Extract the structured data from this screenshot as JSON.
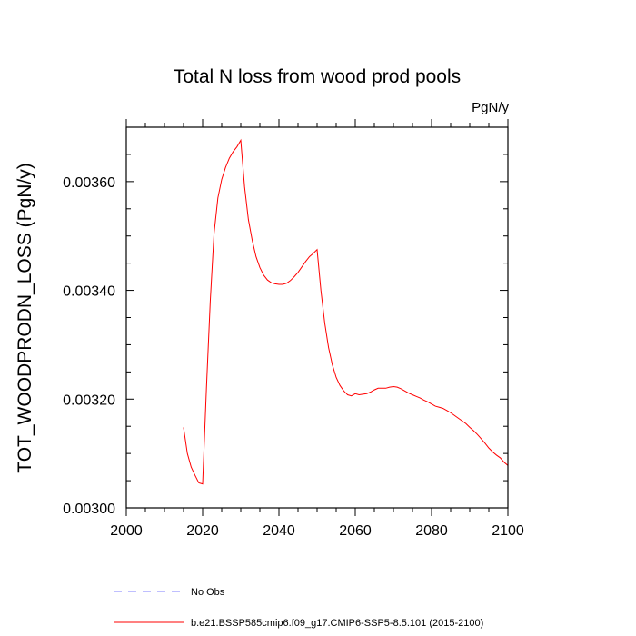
{
  "chart_data": {
    "type": "line",
    "title": "Total N loss from wood prod pools",
    "units_label": "PgN/y",
    "xlabel": "",
    "ylabel": "TOT_WOODPRODN_LOSS  (PgN/y)",
    "xlim": [
      2000,
      2100
    ],
    "ylim": [
      0.003,
      0.0037
    ],
    "x_ticks": [
      2000,
      2020,
      2040,
      2060,
      2080,
      2100
    ],
    "x_tick_labels": [
      "2000",
      "2020",
      "2040",
      "2060",
      "2080",
      "2100"
    ],
    "y_ticks": [
      0.003,
      0.0032,
      0.0034,
      0.0036
    ],
    "y_tick_labels": [
      "0.00300",
      "0.00320",
      "0.00340",
      "0.00360"
    ],
    "grid": false,
    "legend_placement": "bottom-left",
    "series": [
      {
        "name": "No Obs",
        "color": "#7f7fff",
        "dash": "dashed",
        "x": [],
        "y": []
      },
      {
        "name": "b.e21.BSSP585cmip6.f09_g17.CMIP6-SSP5-8.5.101 (2015-2100)",
        "color": "#ff0000",
        "dash": "solid",
        "x": [
          2015,
          2016,
          2017,
          2018,
          2019,
          2020,
          2021,
          2022,
          2023,
          2024,
          2025,
          2026,
          2027,
          2028,
          2029,
          2030,
          2031,
          2032,
          2033,
          2034,
          2035,
          2036,
          2037,
          2038,
          2039,
          2040,
          2041,
          2042,
          2043,
          2044,
          2045,
          2046,
          2047,
          2048,
          2049,
          2050,
          2051,
          2052,
          2053,
          2054,
          2055,
          2056,
          2057,
          2058,
          2059,
          2060,
          2061,
          2062,
          2063,
          2064,
          2065,
          2066,
          2067,
          2068,
          2069,
          2070,
          2071,
          2072,
          2073,
          2074,
          2075,
          2076,
          2077,
          2078,
          2079,
          2080,
          2081,
          2082,
          2083,
          2084,
          2085,
          2086,
          2087,
          2088,
          2089,
          2090,
          2091,
          2092,
          2093,
          2094,
          2095,
          2096,
          2097,
          2098,
          2099,
          2100
        ],
        "y": [
          0.003148,
          0.0031,
          0.003075,
          0.00306,
          0.003046,
          0.003044,
          0.00322,
          0.00338,
          0.003505,
          0.00357,
          0.003604,
          0.003626,
          0.003643,
          0.003655,
          0.003664,
          0.003676,
          0.00359,
          0.00353,
          0.003492,
          0.003462,
          0.003442,
          0.003428,
          0.003419,
          0.003414,
          0.003412,
          0.003411,
          0.003411,
          0.003413,
          0.003418,
          0.003425,
          0.003433,
          0.003443,
          0.003453,
          0.003462,
          0.003468,
          0.003475,
          0.0034,
          0.00334,
          0.003295,
          0.003263,
          0.00324,
          0.003225,
          0.003215,
          0.003208,
          0.003206,
          0.00321,
          0.003208,
          0.003209,
          0.00321,
          0.003213,
          0.003217,
          0.00322,
          0.00322,
          0.00322,
          0.003222,
          0.003223,
          0.003222,
          0.003219,
          0.003215,
          0.003211,
          0.003208,
          0.003205,
          0.003202,
          0.003198,
          0.003195,
          0.003191,
          0.003187,
          0.003185,
          0.003183,
          0.003179,
          0.003175,
          0.00317,
          0.003165,
          0.00316,
          0.003155,
          0.003148,
          0.003142,
          0.003135,
          0.003127,
          0.003119,
          0.00311,
          0.003103,
          0.003097,
          0.003092,
          0.003084,
          0.003078
        ]
      }
    ]
  }
}
